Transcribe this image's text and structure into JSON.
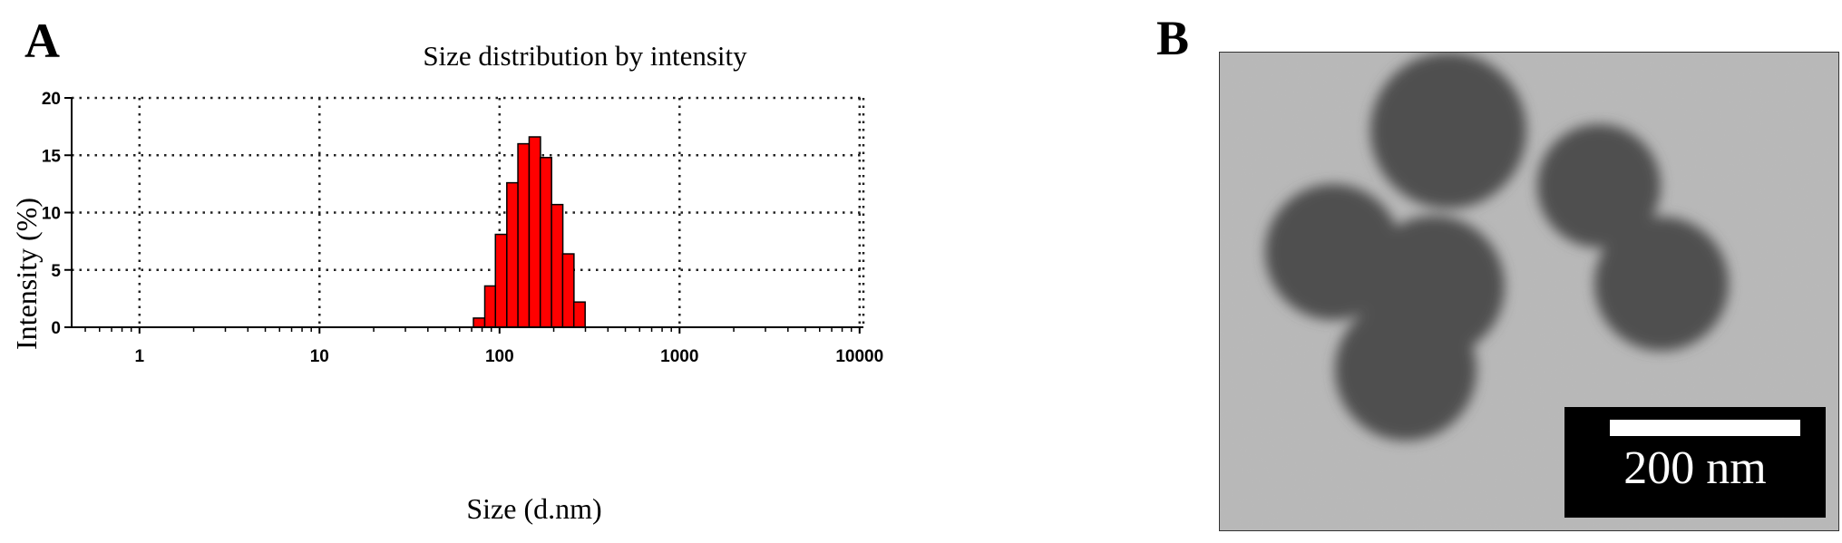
{
  "panels": {
    "a_label": "A",
    "b_label": "B"
  },
  "chart_data": {
    "type": "bar",
    "title": "Size distribution by intensity",
    "xlabel": "Size (d.nm)",
    "ylabel": "Intensity (%)",
    "x_scale": "log",
    "xlim": [
      0.42,
      10500
    ],
    "ylim": [
      0,
      20
    ],
    "grid": true,
    "bar_color": "#ff0000",
    "x_ticks": [
      {
        "value": 1,
        "label": "1"
      },
      {
        "value": 10,
        "label": "10"
      },
      {
        "value": 100,
        "label": "100"
      },
      {
        "value": 1000,
        "label": "1000"
      },
      {
        "value": 10000,
        "label": "10000"
      }
    ],
    "y_ticks": [
      {
        "value": 0,
        "label": "0"
      },
      {
        "value": 5,
        "label": "5"
      },
      {
        "value": 10,
        "label": "10"
      },
      {
        "value": 15,
        "label": "15"
      },
      {
        "value": 20,
        "label": "20"
      }
    ],
    "bins": [
      {
        "size": 77,
        "intensity": 0.8
      },
      {
        "size": 89,
        "intensity": 3.6
      },
      {
        "size": 102,
        "intensity": 8.1
      },
      {
        "size": 118,
        "intensity": 12.6
      },
      {
        "size": 136,
        "intensity": 16.0
      },
      {
        "size": 157,
        "intensity": 16.6
      },
      {
        "size": 181,
        "intensity": 14.8
      },
      {
        "size": 209,
        "intensity": 10.7
      },
      {
        "size": 241,
        "intensity": 6.4
      },
      {
        "size": 278,
        "intensity": 2.2
      }
    ]
  },
  "tem": {
    "scale_label": "200 nm",
    "background_color": "#b9b9b9",
    "particle_color": "#505050"
  }
}
